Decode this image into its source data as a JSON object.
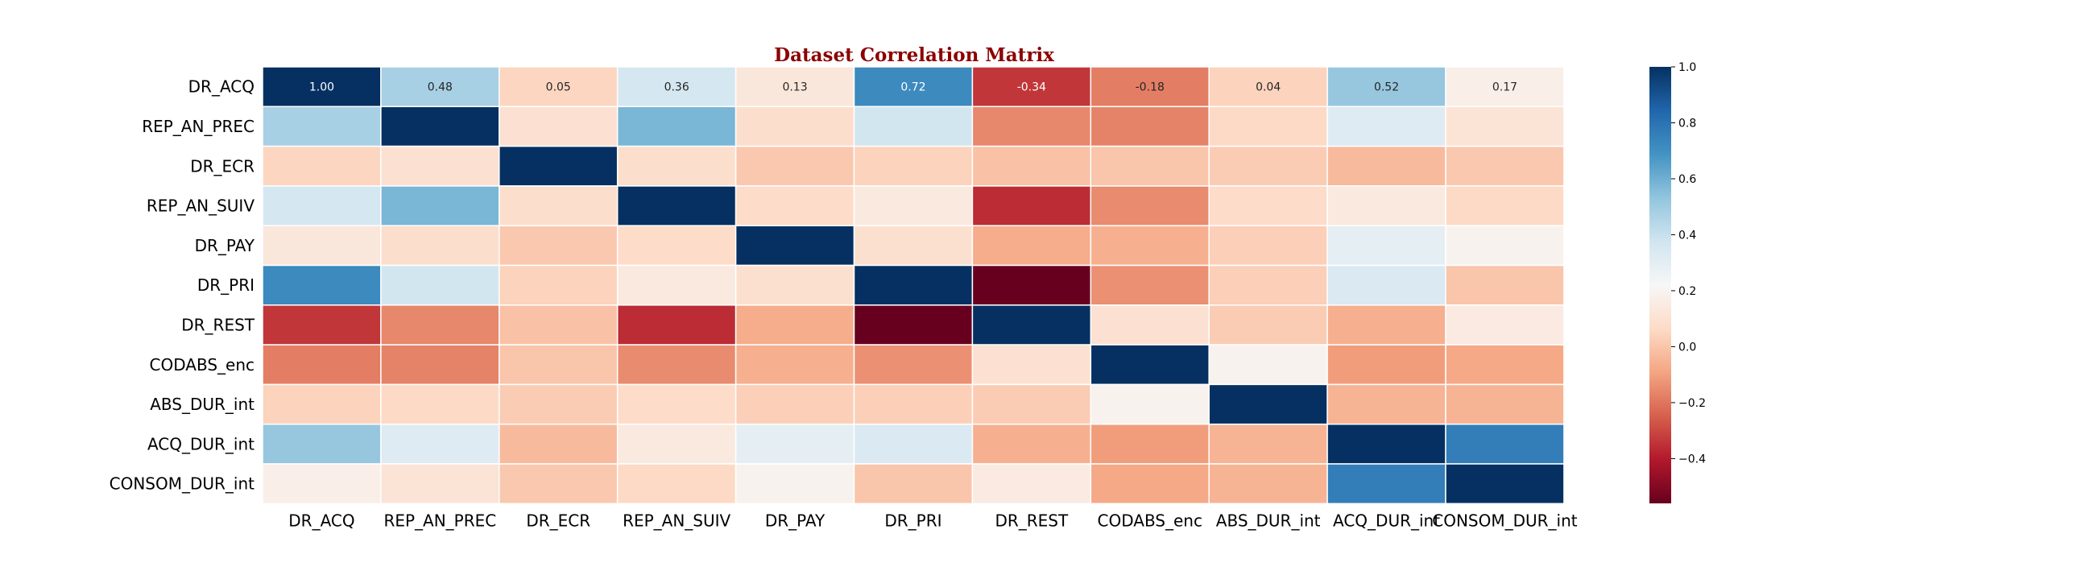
{
  "chart_data": {
    "type": "heatmap",
    "title": "Dataset Correlation Matrix",
    "title_color": "#8b0000",
    "row_labels": [
      "DR_ACQ",
      "REP_AN_PREC",
      "DR_ECR",
      "REP_AN_SUIV",
      "DR_PAY",
      "DR_PRI",
      "DR_REST",
      "CODABS_enc",
      "ABS_DUR_int",
      "ACQ_DUR_int",
      "CONSOM_DUR_int"
    ],
    "col_labels": [
      "DR_ACQ",
      "REP_AN_PREC",
      "DR_ECR",
      "REP_AN_SUIV",
      "DR_PAY",
      "DR_PRI",
      "DR_REST",
      "CODABS_enc",
      "ABS_DUR_int",
      "ACQ_DUR_int",
      "CONSOM_DUR_int"
    ],
    "values": [
      [
        1.0,
        0.48,
        0.05,
        0.36,
        0.13,
        0.72,
        -0.34,
        -0.18,
        0.04,
        0.52,
        0.17
      ],
      [
        0.48,
        1.0,
        0.1,
        0.58,
        0.08,
        0.37,
        -0.16,
        -0.17,
        0.06,
        0.32,
        0.11
      ],
      [
        0.05,
        0.1,
        1.0,
        0.08,
        0.01,
        0.04,
        -0.01,
        0.0,
        0.02,
        -0.03,
        0.01
      ],
      [
        0.36,
        0.58,
        0.08,
        1.0,
        0.07,
        0.14,
        -0.36,
        -0.15,
        0.07,
        0.14,
        0.06
      ],
      [
        0.13,
        0.08,
        0.01,
        0.07,
        1.0,
        0.09,
        -0.07,
        -0.06,
        0.03,
        0.3,
        0.19
      ],
      [
        0.72,
        0.37,
        0.04,
        0.14,
        0.09,
        1.0,
        -0.56,
        -0.14,
        0.03,
        0.34,
        0.0
      ],
      [
        -0.34,
        -0.16,
        -0.01,
        -0.36,
        -0.07,
        -0.56,
        1.0,
        0.1,
        0.02,
        -0.06,
        0.15
      ],
      [
        -0.18,
        -0.17,
        0.0,
        -0.15,
        -0.06,
        -0.14,
        0.1,
        1.0,
        0.19,
        -0.11,
        -0.08
      ],
      [
        0.04,
        0.06,
        0.02,
        0.07,
        0.03,
        0.03,
        0.02,
        0.19,
        1.0,
        -0.05,
        -0.05
      ],
      [
        0.52,
        0.32,
        -0.03,
        0.14,
        0.3,
        0.34,
        -0.06,
        -0.11,
        -0.05,
        1.0,
        0.76
      ],
      [
        0.17,
        0.11,
        0.01,
        0.06,
        0.19,
        0.0,
        0.15,
        -0.08,
        -0.05,
        0.76,
        1.0
      ]
    ],
    "annotated_rows": [
      0
    ],
    "colorbar": {
      "colormap": "RdBu",
      "vmin": -0.56,
      "vmax": 1.0,
      "ticks": [
        1.0,
        0.8,
        0.6,
        0.4,
        0.2,
        0.0,
        -0.2,
        -0.4
      ],
      "tick_labels": [
        "1.0",
        "0.8",
        "0.6",
        "0.4",
        "0.2",
        "0.0",
        "−0.2",
        "−0.4"
      ]
    },
    "grid": false,
    "legend": "colorbar-right"
  }
}
